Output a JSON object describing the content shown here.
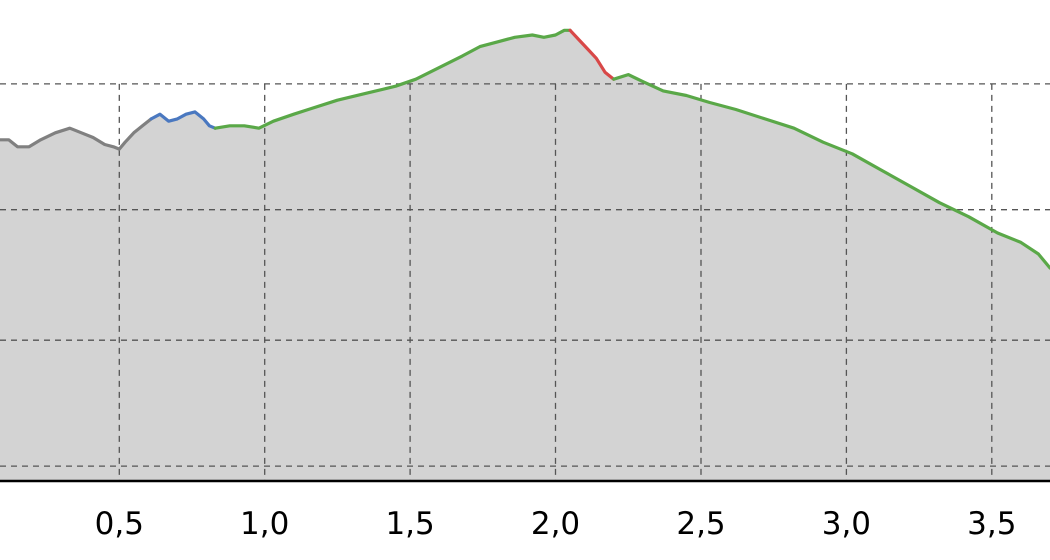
{
  "chart_data": {
    "type": "area",
    "title": "",
    "xlabel": "",
    "ylabel": "",
    "xlim": [
      0.09,
      3.7
    ],
    "ylim": [
      -3.2,
      100
    ],
    "x_ticks": [
      0.5,
      1.0,
      1.5,
      2.0,
      2.5,
      3.0,
      3.5
    ],
    "x_tick_labels": [
      "0,5",
      "1,0",
      "1,5",
      "2,0",
      "2,5",
      "3,0",
      "3,5"
    ],
    "y_gridlines": [
      0,
      27,
      55,
      82
    ],
    "grid": true,
    "fill_color": "#d3d3d3",
    "segments": [
      {
        "color": "#808080",
        "x": [
          0.09,
          0.12,
          0.15,
          0.19,
          0.23,
          0.28,
          0.33,
          0.37,
          0.41,
          0.45,
          0.48,
          0.5,
          0.52,
          0.55,
          0.58,
          0.61
        ],
        "y": [
          70,
          70,
          68.5,
          68.5,
          70,
          71.5,
          72.5,
          71.5,
          70.5,
          69,
          68.5,
          68,
          69.5,
          71.5,
          73,
          74.5
        ]
      },
      {
        "color": "#4a78c0",
        "x": [
          0.61,
          0.64,
          0.67,
          0.7,
          0.73,
          0.76,
          0.79,
          0.81,
          0.83
        ],
        "y": [
          74.5,
          75.5,
          74,
          74.5,
          75.5,
          76,
          74.5,
          73,
          72.5
        ]
      },
      {
        "color": "#5aa848",
        "x": [
          0.83,
          0.88,
          0.93,
          0.98,
          1.03,
          1.1,
          1.15,
          1.25,
          1.35,
          1.45,
          1.52,
          1.6,
          1.68,
          1.74,
          1.8,
          1.86,
          1.92,
          1.96,
          2.0,
          2.03,
          2.05
        ],
        "y": [
          72.5,
          73,
          73,
          72.5,
          74,
          75.5,
          76.5,
          78.5,
          80,
          81.5,
          83,
          85.5,
          88,
          90,
          91,
          92,
          92.5,
          92,
          92.5,
          93.5,
          93.5
        ]
      },
      {
        "color": "#d84848",
        "x": [
          2.05,
          2.08,
          2.11,
          2.14,
          2.17,
          2.2
        ],
        "y": [
          93.5,
          91.5,
          89.5,
          87.5,
          84.5,
          83
        ]
      },
      {
        "color": "#5aa848",
        "x": [
          2.2,
          2.25,
          2.3,
          2.37,
          2.45,
          2.53,
          2.62,
          2.72,
          2.82,
          2.92,
          3.02,
          3.12,
          3.22,
          3.32,
          3.42,
          3.52,
          3.6,
          3.66,
          3.7
        ],
        "y": [
          83,
          84,
          82.5,
          80.5,
          79.5,
          78,
          76.5,
          74.5,
          72.5,
          69.5,
          67,
          63.5,
          60,
          56.5,
          53.5,
          50,
          48,
          45.5,
          42.5
        ]
      }
    ]
  }
}
